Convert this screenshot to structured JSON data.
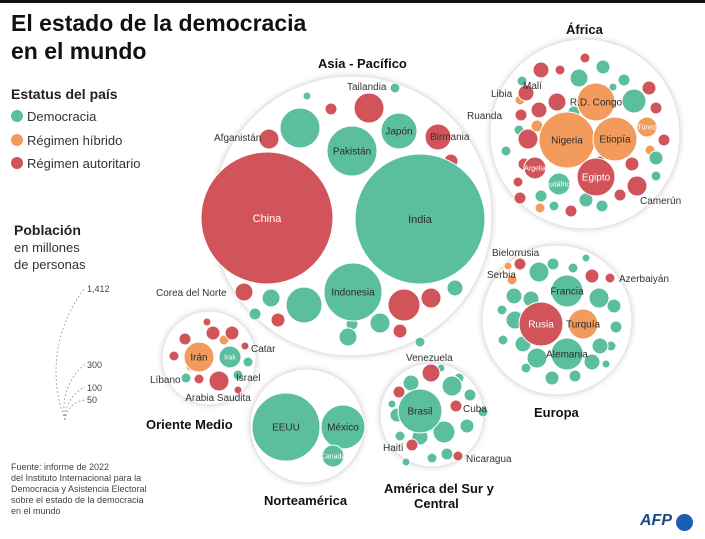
{
  "title": {
    "line1": "El estado de la democracia",
    "line2": "en el mundo"
  },
  "legend": {
    "title": "Estatus del país",
    "items": [
      {
        "label": "Democracia",
        "color": "#5bbf9f"
      },
      {
        "label": "Régimen híbrido",
        "color": "#f29b5c"
      },
      {
        "label": "Régimen autoritario",
        "color": "#d1545a"
      }
    ]
  },
  "population_legend": {
    "title": "Población",
    "line2": "en millones",
    "line3": "de personas",
    "values": [
      "1,412",
      "300",
      "100",
      "50"
    ]
  },
  "source": {
    "line1": "Fuente: informe de 2022",
    "line2": "del Instituto Internacional para la",
    "line3": "Democracia y Asistencia Electoral",
    "line4": "sobre el estado de la democracia",
    "line5": "en el mundo"
  },
  "logo": "AFP",
  "chart_data": {
    "type": "bubble",
    "regions": [
      {
        "name": "Asia - Pacífico",
        "labeled_countries": [
          "China",
          "India",
          "Indonesia",
          "Pakistán",
          "Japón",
          "Tailandia",
          "Birmania",
          "Afganistán",
          "Corea del Norte"
        ]
      },
      {
        "name": "África",
        "labeled_countries": [
          "Nigeria",
          "Etiopía",
          "Egipto",
          "R.D. Congo",
          "Túnez",
          "Libia",
          "Malí",
          "Ruanda",
          "Argelia",
          "Sudáfrica",
          "Camerún"
        ]
      },
      {
        "name": "Europa",
        "labeled_countries": [
          "Rusia",
          "Francia",
          "Turquía",
          "Alemania",
          "Bielorrusia",
          "Serbia",
          "Azerbaiyán"
        ]
      },
      {
        "name": "Oriente Medio",
        "labeled_countries": [
          "Irán",
          "Irak",
          "Arabia Saudita",
          "Israel",
          "Líbano",
          "Catar"
        ]
      },
      {
        "name": "Norteamérica",
        "labeled_countries": [
          "EEUU",
          "México",
          "Canadá"
        ]
      },
      {
        "name": "América del Sur y Central",
        "labeled_countries": [
          "Brasil",
          "Venezuela",
          "Cuba",
          "Haití",
          "Nicaragua"
        ]
      }
    ],
    "countries": [
      {
        "name": "China",
        "region": "Asia - Pacífico",
        "status": "autoritario",
        "population_m": 1412
      },
      {
        "name": "India",
        "region": "Asia - Pacífico",
        "status": "democracia",
        "population_m": 1400
      },
      {
        "name": "Indonesia",
        "region": "Asia - Pacífico",
        "status": "democracia",
        "population_m": 275
      },
      {
        "name": "Pakistán",
        "region": "Asia - Pacífico",
        "status": "democracia",
        "population_m": 230
      },
      {
        "name": "Japón",
        "region": "Asia - Pacífico",
        "status": "democracia",
        "population_m": 125
      },
      {
        "name": "Tailandia",
        "region": "Asia - Pacífico",
        "status": "autoritario",
        "population_m": 70
      },
      {
        "name": "Birmania",
        "region": "Asia - Pacífico",
        "status": "autoritario",
        "population_m": 55
      },
      {
        "name": "Afganistán",
        "region": "Asia - Pacífico",
        "status": "autoritario",
        "population_m": 40
      },
      {
        "name": "Corea del Norte",
        "region": "Asia - Pacífico",
        "status": "autoritario",
        "population_m": 26
      },
      {
        "name": "Nigeria",
        "region": "África",
        "status": "hibrido",
        "population_m": 216
      },
      {
        "name": "Etiopía",
        "region": "África",
        "status": "hibrido",
        "population_m": 120
      },
      {
        "name": "Egipto",
        "region": "África",
        "status": "autoritario",
        "population_m": 105
      },
      {
        "name": "R.D. Congo",
        "region": "África",
        "status": "hibrido",
        "population_m": 95
      },
      {
        "name": "Túnez",
        "region": "África",
        "status": "hibrido",
        "population_m": 12
      },
      {
        "name": "Libia",
        "region": "África",
        "status": "autoritario",
        "population_m": 7
      },
      {
        "name": "Malí",
        "region": "África",
        "status": "autoritario",
        "population_m": 22
      },
      {
        "name": "Ruanda",
        "region": "África",
        "status": "autoritario",
        "population_m": 13
      },
      {
        "name": "Argelia",
        "region": "África",
        "status": "autoritario",
        "population_m": 45
      },
      {
        "name": "Sudáfrica",
        "region": "África",
        "status": "democracia",
        "population_m": 60
      },
      {
        "name": "Camerún",
        "region": "África",
        "status": "autoritario",
        "population_m": 28
      },
      {
        "name": "Rusia",
        "region": "Europa",
        "status": "autoritario",
        "population_m": 145
      },
      {
        "name": "Francia",
        "region": "Europa",
        "status": "democracia",
        "population_m": 68
      },
      {
        "name": "Turquía",
        "region": "Europa",
        "status": "hibrido",
        "population_m": 85
      },
      {
        "name": "Alemania",
        "region": "Europa",
        "status": "democracia",
        "population_m": 84
      },
      {
        "name": "Bielorrusia",
        "region": "Europa",
        "status": "autoritario",
        "population_m": 9
      },
      {
        "name": "Serbia",
        "region": "Europa",
        "status": "hibrido",
        "population_m": 7
      },
      {
        "name": "Azerbaiyán",
        "region": "Europa",
        "status": "autoritario",
        "population_m": 10
      },
      {
        "name": "Irán",
        "region": "Oriente Medio",
        "status": "hibrido",
        "population_m": 88
      },
      {
        "name": "Irak",
        "region": "Oriente Medio",
        "status": "democracia",
        "population_m": 44
      },
      {
        "name": "Arabia Saudita",
        "region": "Oriente Medio",
        "status": "autoritario",
        "population_m": 36
      },
      {
        "name": "Israel",
        "region": "Oriente Medio",
        "status": "democracia",
        "population_m": 9
      },
      {
        "name": "Líbano",
        "region": "Oriente Medio",
        "status": "democracia",
        "population_m": 5
      },
      {
        "name": "Catar",
        "region": "Oriente Medio",
        "status": "autoritario",
        "population_m": 3
      },
      {
        "name": "EEUU",
        "region": "Norteamérica",
        "status": "democracia",
        "population_m": 333
      },
      {
        "name": "México",
        "region": "Norteamérica",
        "status": "democracia",
        "population_m": 128
      },
      {
        "name": "Canadá",
        "region": "Norteamérica",
        "status": "democracia",
        "population_m": 39
      },
      {
        "name": "Brasil",
        "region": "América del Sur y Central",
        "status": "democracia",
        "population_m": 215
      },
      {
        "name": "Venezuela",
        "region": "América del Sur y Central",
        "status": "autoritario",
        "population_m": 28
      },
      {
        "name": "Cuba",
        "region": "América del Sur y Central",
        "status": "autoritario",
        "population_m": 11
      },
      {
        "name": "Haití",
        "region": "América del Sur y Central",
        "status": "autoritario",
        "population_m": 11
      },
      {
        "name": "Nicaragua",
        "region": "América del Sur y Central",
        "status": "autoritario",
        "population_m": 7
      }
    ]
  }
}
